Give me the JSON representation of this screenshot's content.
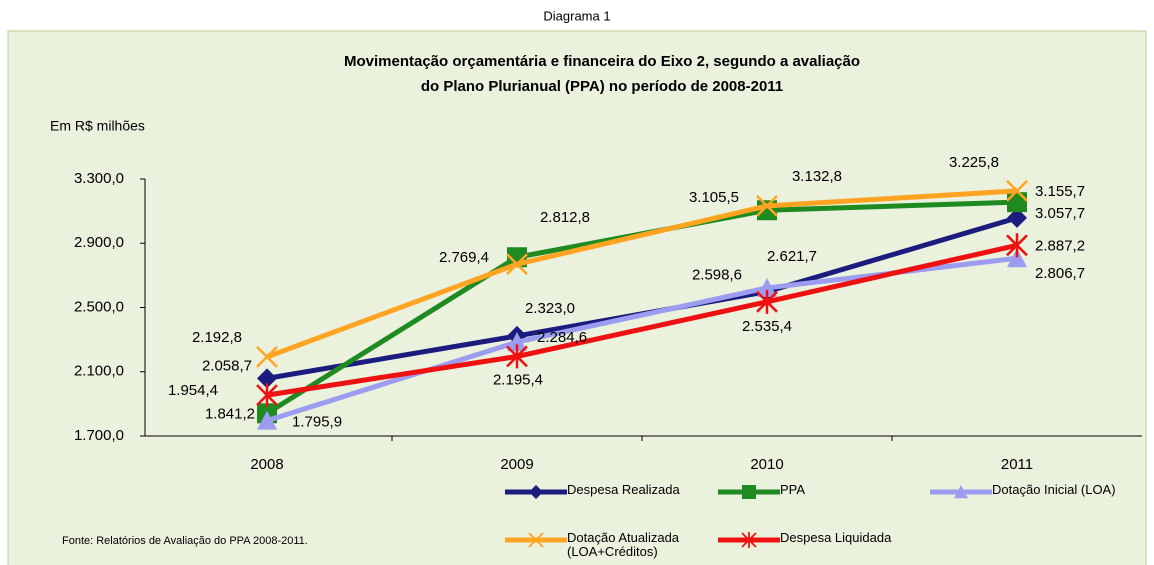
{
  "heading": "Diagrama 1",
  "chart_data": {
    "type": "line",
    "title": "Movimentação orçamentária e financeira do Eixo 2, segundo a  avaliação",
    "subtitle": "do Plano Plurianual (PPA) no período de 2008-2011",
    "y_label": "Em R$ milhões",
    "source": "Fonte: Relatórios de Avaliação do PPA 2008-2011.",
    "categories": [
      "2008",
      "2009",
      "2010",
      "2011"
    ],
    "ylim": [
      1700,
      3300
    ],
    "yticks": [
      {
        "value": 1700,
        "label": "1.700,0"
      },
      {
        "value": 2100,
        "label": "2.100,0"
      },
      {
        "value": 2500,
        "label": "2.500,0"
      },
      {
        "value": 2900,
        "label": "2.900,0"
      },
      {
        "value": 3300,
        "label": "3.300,0"
      }
    ],
    "series": [
      {
        "name": "Despesa Realizada",
        "color": "#1c1c7e",
        "marker": "diamond",
        "values": [
          2058.7,
          2323.0,
          2598.6,
          3057.7
        ],
        "value_labels": [
          "2.058,7",
          "2.323,0",
          "2.598,6",
          "3.057,7"
        ]
      },
      {
        "name": "PPA",
        "color": "#1f8a1f",
        "marker": "square",
        "values": [
          1841.2,
          2812.8,
          3105.5,
          3155.7
        ],
        "value_labels": [
          "1.841,2",
          "2.812,8",
          "3.105,5",
          "3.155,7"
        ]
      },
      {
        "name": "Dotação Inicial (LOA)",
        "color": "#9c9cf0",
        "marker": "triangle",
        "values": [
          1795.9,
          2284.6,
          2621.7,
          2806.7
        ],
        "value_labels": [
          "1.795,9",
          "2.284,6",
          "2.621,7",
          "2.806,7"
        ]
      },
      {
        "name": "Dotação Atualizada (LOA+Créditos)",
        "color": "#ffa422",
        "marker": "x",
        "values": [
          2192.8,
          2769.4,
          3132.8,
          3225.8
        ],
        "value_labels": [
          "2.192,8",
          "2.769,4",
          "3.132,8",
          "3.225,8"
        ]
      },
      {
        "name": "Despesa Liquidada",
        "color": "#ee1111",
        "marker": "star",
        "values": [
          1954.4,
          2195.4,
          2535.4,
          2887.2
        ],
        "value_labels": [
          "1.954,4",
          "2.195,4",
          "2.535,4",
          "2.887,2"
        ]
      }
    ]
  }
}
